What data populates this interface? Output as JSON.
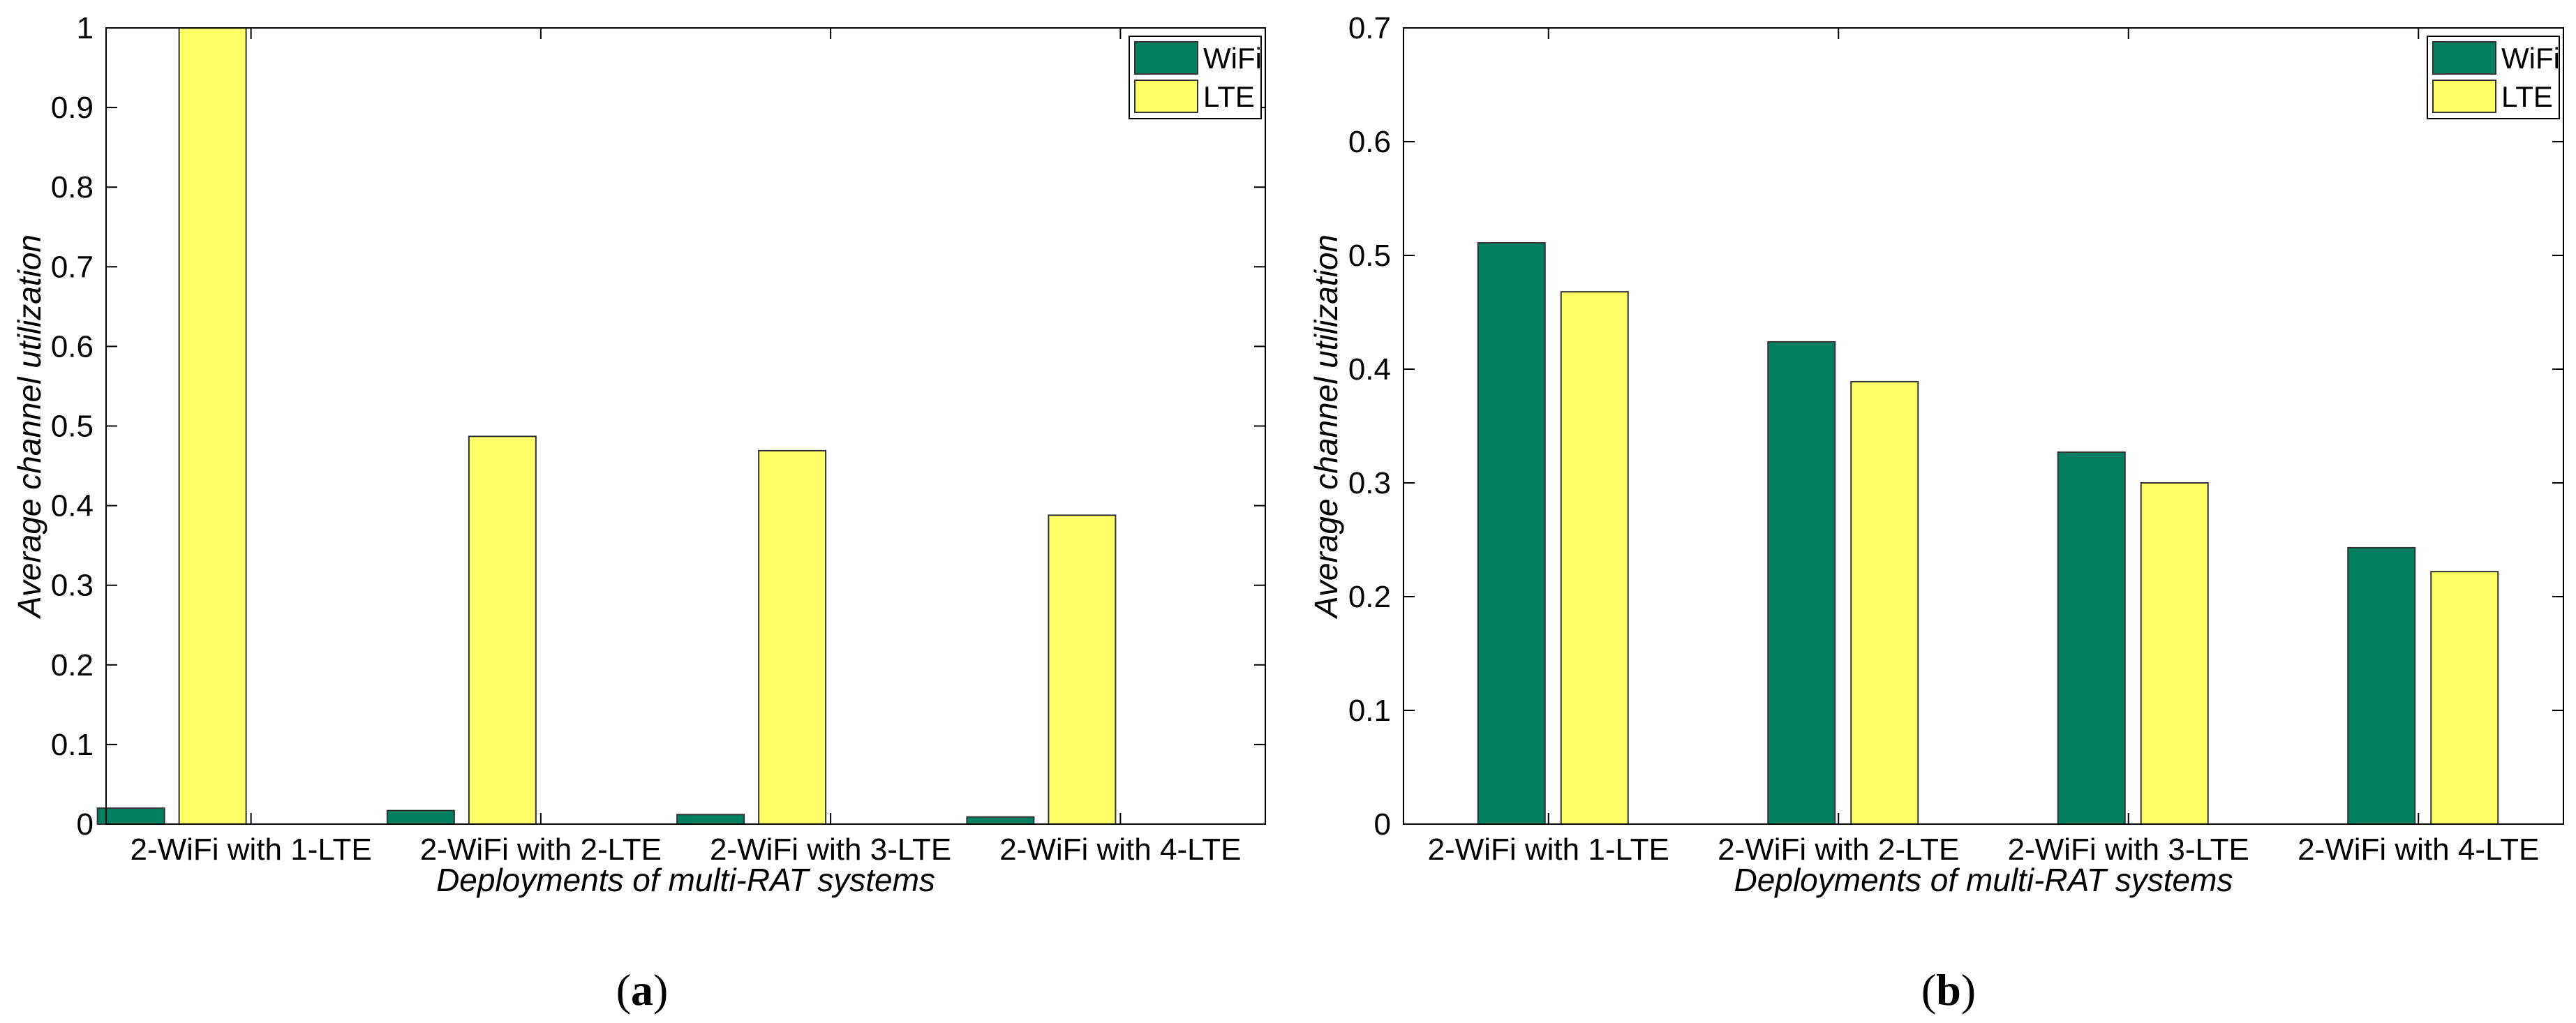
{
  "figure": {
    "panels": [
      {
        "caption_open": "(",
        "caption_letter": "a",
        "caption_close": ")"
      },
      {
        "caption_open": "(",
        "caption_letter": "b",
        "caption_close": ")"
      }
    ]
  },
  "chart_data": [
    {
      "type": "bar",
      "title": "",
      "xlabel": "Deployments of multi-RAT systems",
      "ylabel": "Average channel utilization",
      "categories": [
        "2-WiFi with 1-LTE",
        "2-WiFi with 2-LTE",
        "2-WiFi with 3-LTE",
        "2-WiFi with 4-LTE"
      ],
      "series": [
        {
          "name": "WiFi",
          "color": "#008060",
          "values": [
            0.02,
            0.017,
            0.012,
            0.009
          ]
        },
        {
          "name": "LTE",
          "color": "#FFFF66",
          "values": [
            1.0,
            0.487,
            0.469,
            0.388
          ]
        }
      ],
      "ylim": [
        0,
        1
      ],
      "yticks": [
        0,
        0.1,
        0.2,
        0.3,
        0.4,
        0.5,
        0.6,
        0.7,
        0.8,
        0.9,
        1
      ],
      "ytick_labels": [
        "0",
        "0.1",
        "0.2",
        "0.3",
        "0.4",
        "0.5",
        "0.6",
        "0.7",
        "0.8",
        "0.9",
        "1"
      ],
      "legend_position": "top-right",
      "grid": false
    },
    {
      "type": "bar",
      "title": "",
      "xlabel": "Deployments of multi-RAT systems",
      "ylabel": "Average channel utilization",
      "categories": [
        "2-WiFi with 1-LTE",
        "2-WiFi with 2-LTE",
        "2-WiFi with 3-LTE",
        "2-WiFi with 4-LTE"
      ],
      "series": [
        {
          "name": "WiFi",
          "color": "#008060",
          "values": [
            0.511,
            0.424,
            0.327,
            0.243
          ]
        },
        {
          "name": "LTE",
          "color": "#FFFF66",
          "values": [
            0.468,
            0.389,
            0.3,
            0.222
          ]
        }
      ],
      "ylim": [
        0,
        0.7
      ],
      "yticks": [
        0,
        0.1,
        0.2,
        0.3,
        0.4,
        0.5,
        0.6,
        0.7
      ],
      "ytick_labels": [
        "0",
        "0.1",
        "0.2",
        "0.3",
        "0.4",
        "0.5",
        "0.6",
        "0.7"
      ],
      "legend_position": "top-right",
      "grid": false
    }
  ]
}
